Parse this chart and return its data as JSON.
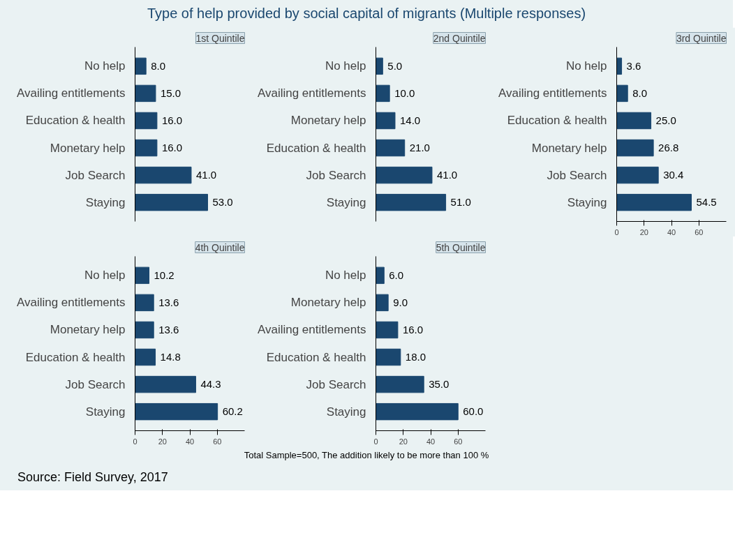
{
  "chart_data": [
    {
      "type": "bar",
      "orientation": "horizontal",
      "title": "1st Quintile",
      "annotations": [
        "Type of help provided by social capital of migrants (Multiple responses)"
      ],
      "categories": [
        "No help",
        "Availing entitlements",
        "Education & health",
        "Monetary help",
        "Job Search",
        "Staying"
      ],
      "values": [
        8.0,
        15.0,
        16.0,
        16.0,
        41.0,
        53.0
      ],
      "value_labels": [
        "8.0",
        "15.0",
        "16.0",
        "16.0",
        "41.0",
        "53.0"
      ],
      "color": "#1a476f",
      "tick_labels": "y"
    },
    {
      "type": "bar",
      "orientation": "horizontal",
      "title": "2nd Quintile",
      "categories": [
        "No help",
        "Availing entitlements",
        "Monetary help",
        "Education & health",
        "Job Search",
        "Staying"
      ],
      "values": [
        5.0,
        10.0,
        14.0,
        21.0,
        41.0,
        51.0
      ],
      "value_labels": [
        "5.0",
        "10.0",
        "14.0",
        "21.0",
        "41.0",
        "51.0"
      ],
      "color": "#1a476f",
      "tick_labels": "y"
    },
    {
      "type": "bar",
      "orientation": "horizontal",
      "title": "3rd Quintile",
      "categories": [
        "No help",
        "Availing entitlements",
        "Education & health",
        "Monetary help",
        "Job Search",
        "Staying"
      ],
      "values": [
        3.6,
        8.0,
        25.0,
        26.8,
        30.4,
        54.5
      ],
      "value_labels": [
        "3.6",
        "8.0",
        "25.0",
        "26.8",
        "30.4",
        "54.5"
      ],
      "color": "#1a476f",
      "xlim": [
        0,
        80
      ],
      "xticks": [
        0,
        20,
        40,
        60
      ]
    },
    {
      "type": "bar",
      "orientation": "horizontal",
      "title": "4th Quintile",
      "categories": [
        "No help",
        "Availing entitlements",
        "Monetary help",
        "Education & health",
        "Job Search",
        "Staying"
      ],
      "values": [
        10.2,
        13.6,
        13.6,
        14.8,
        44.3,
        60.2
      ],
      "value_labels": [
        "10.2",
        "13.6",
        "13.6",
        "14.8",
        "44.3",
        "60.2"
      ],
      "color": "#1a476f",
      "xlim": [
        0,
        80
      ],
      "xticks": [
        0,
        20,
        40,
        60
      ]
    },
    {
      "type": "bar",
      "orientation": "horizontal",
      "title": "5th Quintile",
      "annotations": [
        "Total Sample=500, The addition likely to be more than 100 %",
        "Source: Field Survey, 2017"
      ],
      "categories": [
        "No help",
        "Monetary help",
        "Availing entitlements",
        "Education & health",
        "Job Search",
        "Staying"
      ],
      "values": [
        6.0,
        9.0,
        16.0,
        18.0,
        35.0,
        60.0
      ],
      "value_labels": [
        "6.0",
        "9.0",
        "16.0",
        "18.0",
        "35.0",
        "60.0"
      ],
      "color": "#1a476f",
      "xlim": [
        0,
        80
      ],
      "xticks": [
        0,
        20,
        40,
        60
      ]
    }
  ]
}
